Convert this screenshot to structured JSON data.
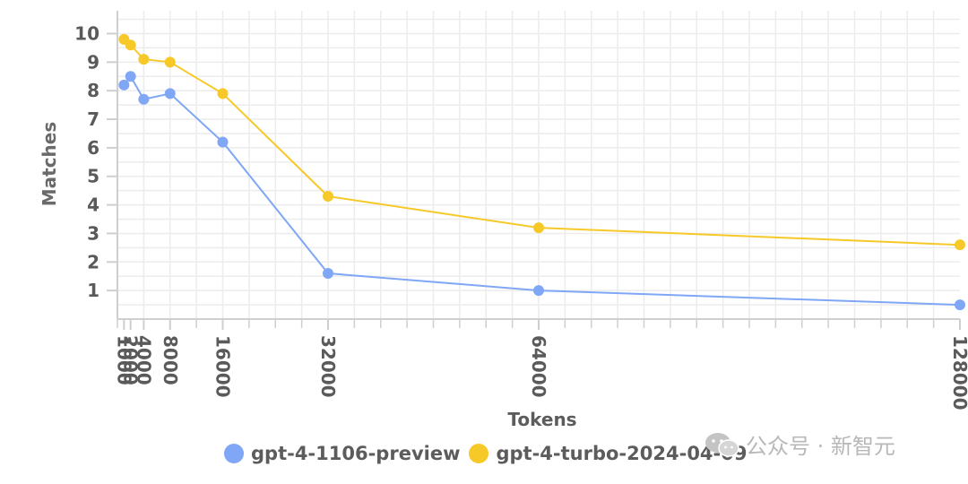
{
  "chart_data": {
    "type": "line",
    "title": "",
    "xlabel": "Tokens",
    "ylabel": "Matches",
    "x": [
      1000,
      2000,
      4000,
      8000,
      16000,
      32000,
      64000,
      128000
    ],
    "x_tick_labels": [
      "1000",
      "2000",
      "4000",
      "8000",
      "16000",
      "32000",
      "64000",
      "128000"
    ],
    "y_ticks": [
      1,
      2,
      3,
      4,
      5,
      6,
      7,
      8,
      9,
      10
    ],
    "xlim": [
      0,
      128000
    ],
    "ylim": [
      0,
      10.8
    ],
    "grid": true,
    "legend_position": "bottom",
    "series": [
      {
        "name": "gpt-4-1106-preview",
        "color": "#7fa7f5",
        "values": [
          8.2,
          8.5,
          7.7,
          7.9,
          6.2,
          1.6,
          1.0,
          0.5
        ]
      },
      {
        "name": "gpt-4-turbo-2024-04-09",
        "color": "#f7c928",
        "values": [
          9.8,
          9.6,
          9.1,
          9.0,
          7.9,
          4.3,
          3.2,
          2.6
        ]
      }
    ]
  },
  "watermark": {
    "text": "公众号 · 新智元",
    "icon": "wechat-icon"
  }
}
